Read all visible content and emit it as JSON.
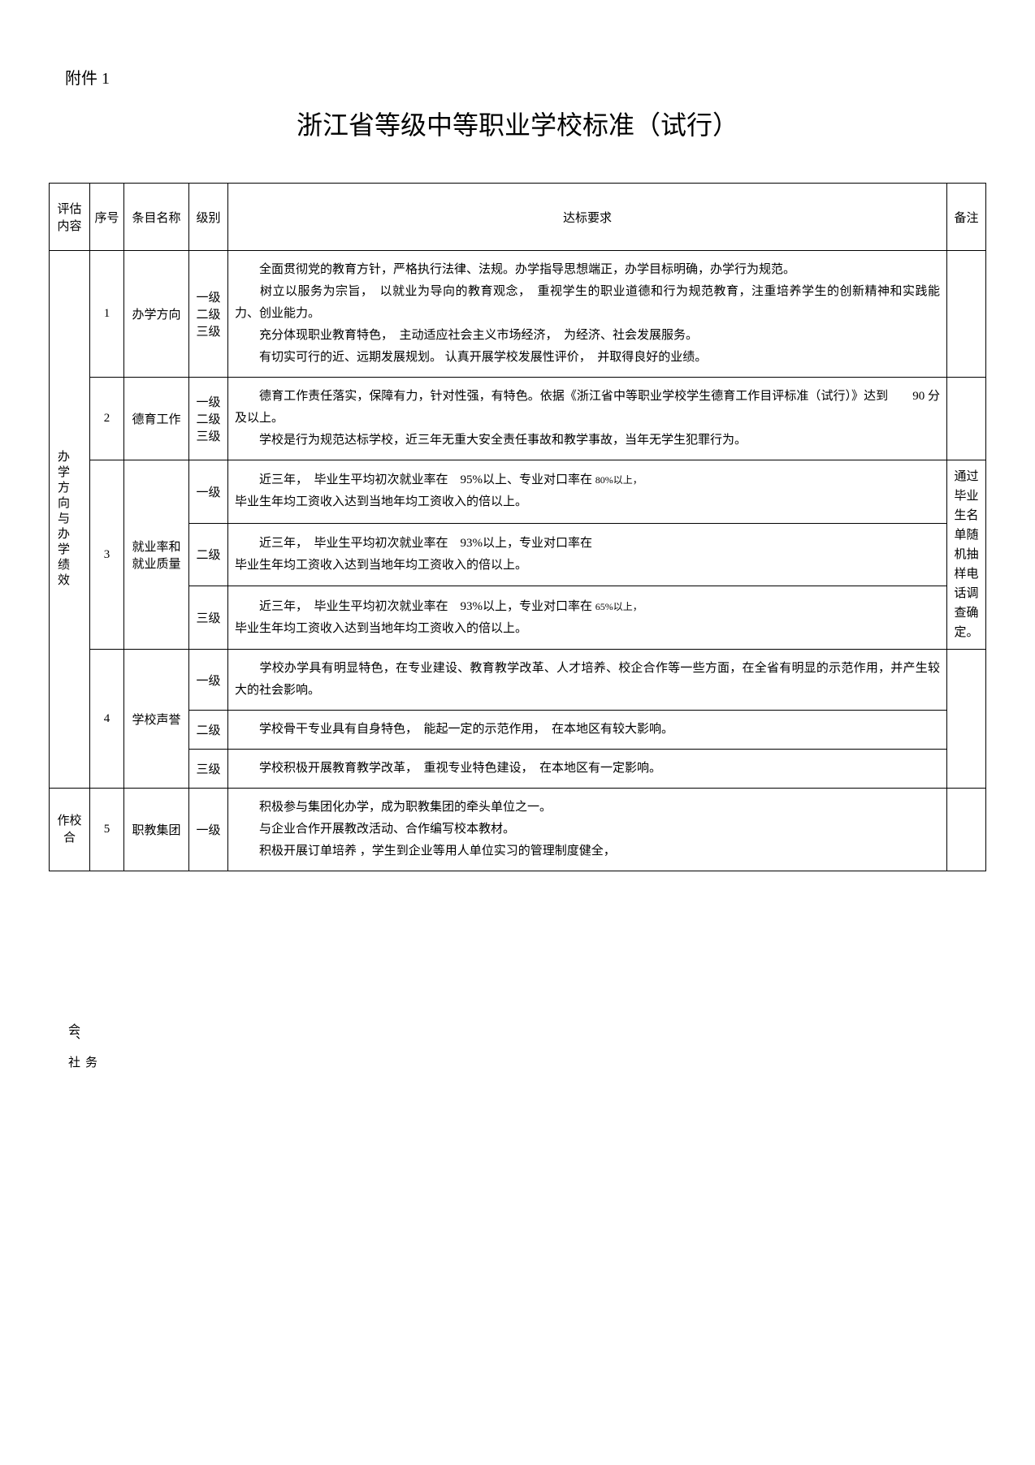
{
  "attachment": "附件 1",
  "title": "浙江省等级中等职业学校标准（试行）",
  "headers": {
    "eval": "评估内容",
    "seq": "序号",
    "item": "条目名称",
    "level": "级别",
    "req": "达标要求",
    "note": "备注"
  },
  "category1": "办学方向与办学绩效",
  "category2_left": "作校合",
  "category2_seq": "5",
  "side_text1": "会、",
  "side_text2": "务 社",
  "rows": {
    "r1": {
      "seq": "1",
      "item": "办学方向",
      "level": "一级\n二级\n三级",
      "req": "　　全面贯彻党的教育方针，严格执行法律、法规。办学指导思想端正，办学目标明确，办学行为规范。\n　　树立以服务为宗旨，　以就业为导向的教育观念，　重视学生的职业道德和行为规范教育，注重培养学生的创新精神和实践能力、创业能力。\n　　充分体现职业教育特色，　主动适应社会主义市场经济，　为经济、社会发展服务。\n　　有切实可行的近、远期发展规划。 认真开展学校发展性评价，　并取得良好的业绩。"
    },
    "r2": {
      "seq": "2",
      "item": "德育工作",
      "level": "一级\n二级\n三级",
      "req": "　　德育工作责任落实，保障有力，针对性强，有特色。依据《浙江省中等职业学校学生德育工作目评标准（试行）》达到　　90 分及以上。\n　　学校是行为规范达标学校，近三年无重大安全责任事故和教学事故，当年无学生犯罪行为。"
    },
    "r3": {
      "seq": "3",
      "item": "就业率和就业质量",
      "l1": "一级",
      "l2": "二级",
      "l3": "三级",
      "req1": "　　近三年，　毕业生平均初次就业率在　95%以上、专业对口率在",
      "req1_small": "80%以上，",
      "req1b": "毕业生年均工资收入达到当地年均工资收入的倍以上。",
      "req2": "　　近三年，　毕业生平均初次就业率在　93%以上，专业对口率在\n毕业生年均工资收入达到当地年均工资收入的倍以上。",
      "req3": "　　近三年，　毕业生平均初次就业率在　93%以上，专业对口率在",
      "req3_small": "65%以上，",
      "req3b": "毕业生年均工资收入达到当地年均工资收入的倍以上。",
      "note": "通过毕业生名单随机抽样电话调查确定。"
    },
    "r4": {
      "seq": "4",
      "item": "学校声誉",
      "l1": "一级",
      "l2": "二级",
      "l3": "三级",
      "req1": "　　学校办学具有明显特色，在专业建设、教育教学改革、人才培养、校企合作等一些方面，在全省有明显的示范作用，并产生较大的社会影响。",
      "req2": "　　学校骨干专业具有自身特色，　能起一定的示范作用，　在本地区有较大影响。",
      "req3": "　　学校积极开展教育教学改革，　重视专业特色建设，　在本地区有一定影响。"
    },
    "r5": {
      "item": "职教集团",
      "l1": "一级",
      "req1": "　　积极参与集团化办学，成为职教集团的牵头单位之一。\n　　与企业合作开展教改活动、合作编写校本教材。\n　　积极开展订单培养 ，学生到企业等用人单位实习的管理制度健全，"
    }
  }
}
